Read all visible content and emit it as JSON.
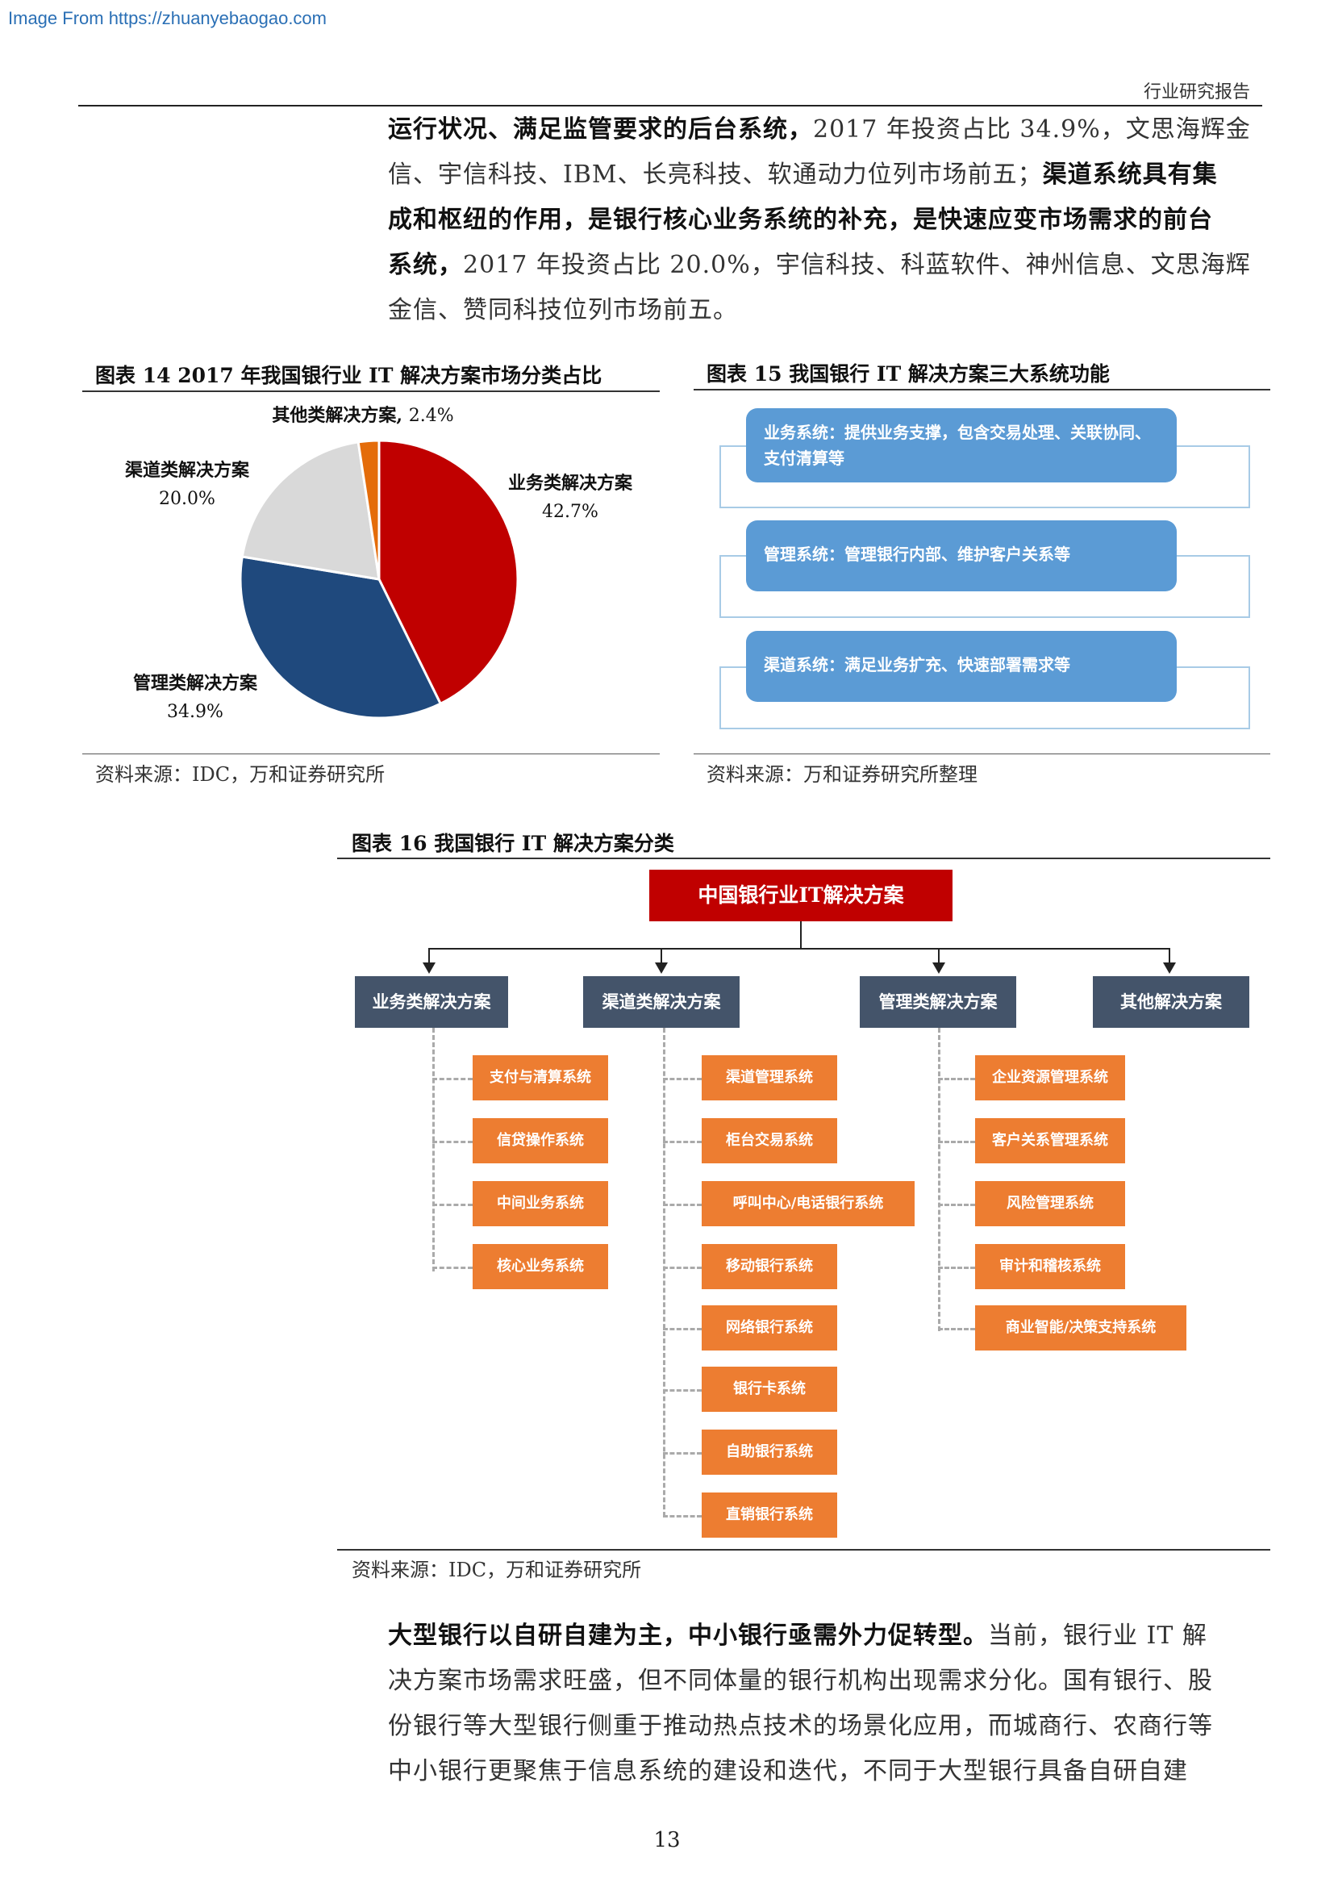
{
  "source_link": "Image From https://zhuanyebaogao.com",
  "header": {
    "right": "行业研究报告"
  },
  "para_top": {
    "l1_bold": "运行状况、满足监管要求的后台系统，",
    "l1_rest": "2017 年投资占比 34.9%，文思海辉金",
    "l2": "信、宇信科技、IBM、长亮科技、软通动力位列市场前五；",
    "l2_bold": "渠道系统具有集",
    "l3_bold": "成和枢纽的作用，是银行核心业务系统的补充，是快速应变市场需求的前台",
    "l4_bold": "系统，",
    "l4_rest": "2017 年投资占比 20.0%，宇信科技、科蓝软件、神州信息、文思海辉",
    "l5": "金信、赞同科技位列市场前五。"
  },
  "fig14": {
    "title": "图表 14    2017 年我国银行业 IT 解决方案市场分类占比",
    "source": "资料来源：IDC，万和证券研究所"
  },
  "chart_data": {
    "type": "pie",
    "slices": [
      {
        "label": "业务类解决方案",
        "value": 42.7,
        "display": "42.7%",
        "color": "#c00000"
      },
      {
        "label": "管理类解决方案",
        "value": 34.9,
        "display": "34.9%",
        "color": "#1f497d"
      },
      {
        "label": "渠道类解决方案",
        "value": 20.0,
        "display": "20.0%",
        "color": "#d9d9d9"
      },
      {
        "label": "其他类解决方案",
        "value": 2.4,
        "display": "2.4%",
        "color": "#e46c0a"
      }
    ]
  },
  "fig15": {
    "title": "图表 15    我国银行 IT 解决方案三大系统功能",
    "boxes": [
      "业务系统：提供业务支撑，包含交易处理、关联协同、支付清算等",
      "管理系统：管理银行内部、维护客户关系等",
      "渠道系统：满足业务扩充、快速部署需求等"
    ],
    "source": "资料来源：万和证券研究所整理"
  },
  "fig16": {
    "title": "图表 16    我国银行 IT 解决方案分类",
    "root": "中国银行业IT解决方案",
    "categories": [
      "业务类解决方案",
      "渠道类解决方案",
      "管理类解决方案",
      "其他解决方案"
    ],
    "business": [
      "支付与清算系统",
      "信贷操作系统",
      "中间业务系统",
      "核心业务系统"
    ],
    "channel": [
      "渠道管理系统",
      "柜台交易系统",
      "呼叫中心/电话银行系统",
      "移动银行系统",
      "网络银行系统",
      "银行卡系统",
      "自助银行系统",
      "直销银行系统"
    ],
    "management": [
      "企业资源管理系统",
      "客户关系管理系统",
      "风险管理系统",
      "审计和稽核系统",
      "商业智能/决策支持系统"
    ],
    "source": "资料来源：IDC，万和证券研究所"
  },
  "para_bottom": {
    "l1_bold": "大型银行以自研自建为主，中小银行亟需外力促转型。",
    "l1_rest": "当前，银行业 IT 解",
    "l2": "决方案市场需求旺盛，但不同体量的银行机构出现需求分化。国有银行、股",
    "l3": "份银行等大型银行侧重于推动热点技术的场景化应用，而城商行、农商行等",
    "l4": "中小银行更聚焦于信息系统的建设和迭代，不同于大型银行具备自研自建"
  },
  "page_number": "13"
}
